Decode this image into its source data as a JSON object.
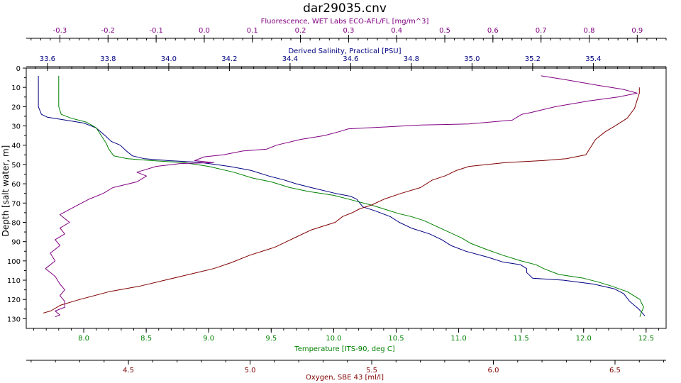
{
  "chart_data": {
    "type": "line",
    "title": "dar29035.cnv",
    "y_axis": {
      "label": "Depth [salt water, m]",
      "range": [
        0,
        135
      ],
      "ticks": [
        0,
        10,
        20,
        30,
        40,
        50,
        60,
        70,
        80,
        90,
        100,
        110,
        120,
        130
      ],
      "inverted": true
    },
    "x_axes": [
      {
        "id": "fluorescence",
        "label": "Fluorescence, WET Labs ECO-AFL/FL [mg/m^3]",
        "position": "top",
        "color": "#800080",
        "range": [
          -0.37,
          0.96
        ],
        "ticks": [
          -0.3,
          -0.2,
          -0.1,
          0.0,
          0.1,
          0.2,
          0.3,
          0.4,
          0.5,
          0.6,
          0.7,
          0.8,
          0.9
        ],
        "tick_labels": [
          "-0.3",
          "-0.2",
          "-0.1",
          "0.0",
          "0.1",
          "0.2",
          "0.3",
          "0.4",
          "0.5",
          "0.6",
          "0.7",
          "0.8",
          "0.9"
        ]
      },
      {
        "id": "salinity",
        "label": "Derived Salinity, Practical [PSU]",
        "position": "top",
        "color": "#000080",
        "range": [
          33.53,
          35.64
        ],
        "ticks": [
          33.6,
          33.8,
          34.0,
          34.2,
          34.4,
          34.6,
          34.8,
          35.0,
          35.2,
          35.4
        ],
        "tick_labels": [
          "33.6",
          "33.8",
          "34.0",
          "34.2",
          "34.4",
          "34.6",
          "34.8",
          "35.0",
          "35.2",
          "35.4"
        ]
      },
      {
        "id": "temperature",
        "label": "Temperature [ITS-90, deg C]",
        "position": "bottom",
        "color": "#008000",
        "range": [
          7.54,
          12.66
        ],
        "ticks": [
          8.0,
          8.5,
          9.0,
          9.5,
          10.0,
          10.5,
          11.0,
          11.5,
          12.0,
          12.5
        ],
        "tick_labels": [
          "8.0",
          "8.5",
          "9.0",
          "9.5",
          "10.0",
          "10.5",
          "11.0",
          "11.5",
          "12.0",
          "12.5"
        ]
      },
      {
        "id": "oxygen",
        "label": "Oxygen, SBE 43 [ml/l]",
        "position": "bottom",
        "color": "#800000",
        "range": [
          4.08,
          6.71
        ],
        "ticks": [
          4.5,
          5.0,
          5.5,
          6.0,
          6.5
        ],
        "tick_labels": [
          "4.5",
          "5.0",
          "5.5",
          "6.0",
          "6.5"
        ]
      }
    ],
    "series": [
      {
        "axis": "salinity",
        "color": "#000080",
        "points": [
          [
            33.57,
            4
          ],
          [
            33.57,
            10
          ],
          [
            33.57,
            20
          ],
          [
            33.58,
            24
          ],
          [
            33.6,
            25.5
          ],
          [
            33.66,
            27
          ],
          [
            33.72,
            28.5
          ],
          [
            33.76,
            31
          ],
          [
            33.79,
            35
          ],
          [
            33.81,
            38
          ],
          [
            33.84,
            40
          ],
          [
            33.86,
            43
          ],
          [
            33.88,
            45.5
          ],
          [
            33.92,
            47
          ],
          [
            34.0,
            48
          ],
          [
            34.1,
            48.8
          ],
          [
            34.2,
            51
          ],
          [
            34.27,
            53
          ],
          [
            34.33,
            56
          ],
          [
            34.38,
            58
          ],
          [
            34.42,
            60
          ],
          [
            34.47,
            62
          ],
          [
            34.55,
            65
          ],
          [
            34.6,
            66.5
          ],
          [
            34.62,
            68
          ],
          [
            34.63,
            70
          ],
          [
            34.64,
            72
          ],
          [
            34.68,
            74
          ],
          [
            34.73,
            77
          ],
          [
            34.76,
            80
          ],
          [
            34.8,
            83
          ],
          [
            34.86,
            86
          ],
          [
            34.9,
            89
          ],
          [
            34.93,
            92
          ],
          [
            34.98,
            95
          ],
          [
            35.05,
            98
          ],
          [
            35.1,
            100.5
          ],
          [
            35.16,
            102
          ],
          [
            35.18,
            104
          ],
          [
            35.18,
            106
          ],
          [
            35.2,
            109
          ],
          [
            35.3,
            110
          ],
          [
            35.4,
            112
          ],
          [
            35.47,
            114.5
          ],
          [
            35.5,
            117
          ],
          [
            35.52,
            121
          ],
          [
            35.55,
            125
          ],
          [
            35.57,
            128.5
          ]
        ]
      },
      {
        "axis": "temperature",
        "color": "#008000",
        "points": [
          [
            7.8,
            4
          ],
          [
            7.8,
            10
          ],
          [
            7.8,
            20
          ],
          [
            7.82,
            24
          ],
          [
            7.9,
            26
          ],
          [
            8.02,
            28
          ],
          [
            8.1,
            31
          ],
          [
            8.14,
            35
          ],
          [
            8.18,
            39
          ],
          [
            8.2,
            42
          ],
          [
            8.24,
            45.5
          ],
          [
            8.35,
            47
          ],
          [
            8.55,
            48
          ],
          [
            8.8,
            49
          ],
          [
            9.0,
            51
          ],
          [
            9.2,
            54
          ],
          [
            9.35,
            57
          ],
          [
            9.5,
            59
          ],
          [
            9.65,
            62
          ],
          [
            9.8,
            64
          ],
          [
            10.0,
            66
          ],
          [
            10.15,
            68.5
          ],
          [
            10.3,
            71
          ],
          [
            10.4,
            73
          ],
          [
            10.52,
            75.5
          ],
          [
            10.62,
            77
          ],
          [
            10.72,
            79
          ],
          [
            10.82,
            82
          ],
          [
            10.92,
            85
          ],
          [
            11.02,
            88
          ],
          [
            11.1,
            91
          ],
          [
            11.22,
            94
          ],
          [
            11.35,
            97
          ],
          [
            11.5,
            100
          ],
          [
            11.62,
            102
          ],
          [
            11.68,
            104
          ],
          [
            11.8,
            107
          ],
          [
            12.0,
            109
          ],
          [
            12.12,
            111
          ],
          [
            12.22,
            113
          ],
          [
            12.35,
            116
          ],
          [
            12.45,
            120
          ],
          [
            12.48,
            124
          ],
          [
            12.46,
            127
          ],
          [
            12.45,
            129
          ]
        ]
      },
      {
        "axis": "fluorescence",
        "color": "#800080",
        "points": [
          [
            0.7,
            4
          ],
          [
            0.75,
            6
          ],
          [
            0.82,
            9
          ],
          [
            0.87,
            11
          ],
          [
            0.9,
            13
          ],
          [
            0.86,
            15
          ],
          [
            0.8,
            17
          ],
          [
            0.73,
            20
          ],
          [
            0.68,
            23
          ],
          [
            0.66,
            24
          ],
          [
            0.64,
            27
          ],
          [
            0.55,
            29
          ],
          [
            0.45,
            29.5
          ],
          [
            0.38,
            30.5
          ],
          [
            0.3,
            31.5
          ],
          [
            0.28,
            33
          ],
          [
            0.25,
            35
          ],
          [
            0.2,
            37
          ],
          [
            0.15,
            40
          ],
          [
            0.13,
            42
          ],
          [
            0.08,
            43
          ],
          [
            0.04,
            45
          ],
          [
            0.0,
            46
          ],
          [
            -0.02,
            48
          ],
          [
            0.02,
            49
          ],
          [
            -0.05,
            49.5
          ],
          [
            -0.1,
            51
          ],
          [
            -0.14,
            54
          ],
          [
            -0.12,
            56
          ],
          [
            -0.14,
            59
          ],
          [
            -0.19,
            62
          ],
          [
            -0.21,
            65
          ],
          [
            -0.24,
            68
          ],
          [
            -0.27,
            72
          ],
          [
            -0.3,
            76
          ],
          [
            -0.28,
            80
          ],
          [
            -0.3,
            83
          ],
          [
            -0.29,
            86
          ],
          [
            -0.31,
            89
          ],
          [
            -0.3,
            92
          ],
          [
            -0.32,
            96
          ],
          [
            -0.31,
            100
          ],
          [
            -0.33,
            104
          ],
          [
            -0.31,
            108
          ],
          [
            -0.3,
            112
          ],
          [
            -0.29,
            115
          ],
          [
            -0.3,
            118
          ],
          [
            -0.29,
            121
          ],
          [
            -0.29,
            124
          ],
          [
            -0.31,
            126
          ],
          [
            -0.3,
            128
          ],
          [
            -0.31,
            129
          ]
        ]
      },
      {
        "axis": "oxygen",
        "color": "#800000",
        "points": [
          [
            6.6,
            10
          ],
          [
            6.6,
            13
          ],
          [
            6.59,
            17
          ],
          [
            6.58,
            21
          ],
          [
            6.55,
            26
          ],
          [
            6.5,
            30
          ],
          [
            6.46,
            33
          ],
          [
            6.42,
            37
          ],
          [
            6.4,
            41
          ],
          [
            6.38,
            45
          ],
          [
            6.3,
            47
          ],
          [
            6.2,
            48
          ],
          [
            6.05,
            49
          ],
          [
            5.9,
            51
          ],
          [
            5.85,
            53
          ],
          [
            5.8,
            56
          ],
          [
            5.75,
            58
          ],
          [
            5.7,
            62
          ],
          [
            5.62,
            65
          ],
          [
            5.55,
            68
          ],
          [
            5.5,
            71
          ],
          [
            5.45,
            73
          ],
          [
            5.42,
            75
          ],
          [
            5.38,
            77
          ],
          [
            5.35,
            80
          ],
          [
            5.3,
            82
          ],
          [
            5.25,
            84
          ],
          [
            5.2,
            87
          ],
          [
            5.15,
            90
          ],
          [
            5.1,
            93
          ],
          [
            5.0,
            97
          ],
          [
            4.92,
            101
          ],
          [
            4.85,
            104
          ],
          [
            4.75,
            107
          ],
          [
            4.65,
            110
          ],
          [
            4.55,
            113
          ],
          [
            4.42,
            116
          ],
          [
            4.3,
            120
          ],
          [
            4.22,
            123
          ],
          [
            4.18,
            126
          ],
          [
            4.15,
            127
          ]
        ]
      }
    ]
  }
}
